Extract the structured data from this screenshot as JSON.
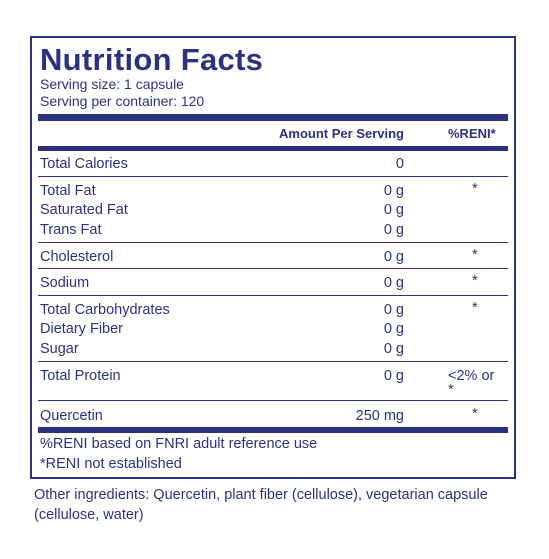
{
  "label": {
    "title": "Nutrition Facts",
    "serving_size": "Serving size: 1 capsule",
    "servings_per_container": "Serving per container: 120",
    "col_amount": "Amount Per Serving",
    "col_reni": "%RENI*",
    "groups": [
      {
        "rows": [
          {
            "name": "Total Calories",
            "amount": "0",
            "reni": ""
          }
        ]
      },
      {
        "rows": [
          {
            "name": "Total Fat",
            "amount": "0 g",
            "reni": "*"
          },
          {
            "name": "Saturated Fat",
            "amount": "0 g",
            "reni": ""
          },
          {
            "name": "Trans Fat",
            "amount": "0 g",
            "reni": ""
          }
        ]
      },
      {
        "rows": [
          {
            "name": "Cholesterol",
            "amount": "0 g",
            "reni": "*"
          }
        ]
      },
      {
        "rows": [
          {
            "name": "Sodium",
            "amount": "0 g",
            "reni": "*"
          }
        ]
      },
      {
        "rows": [
          {
            "name": "Total Carbohydrates",
            "amount": "0 g",
            "reni": "*"
          },
          {
            "name": "Dietary Fiber",
            "amount": "0 g",
            "reni": ""
          },
          {
            "name": "Sugar",
            "amount": "0 g",
            "reni": ""
          }
        ]
      },
      {
        "rows": [
          {
            "name": "Total Protein",
            "amount": "0 g",
            "reni": "<2% or",
            "reni2": "*"
          }
        ]
      },
      {
        "rows": [
          {
            "name": "Quercetin",
            "amount": "250 mg",
            "reni": "*"
          }
        ]
      }
    ],
    "footnote1": "%RENI based on FNRI adult reference use",
    "footnote2": "*RENI not established"
  },
  "other_ingredients": "Other ingredients: Quercetin, plant fiber (cellulose), vegetarian capsule (cellulose, water)",
  "colors": {
    "ink": "#2b3380"
  }
}
